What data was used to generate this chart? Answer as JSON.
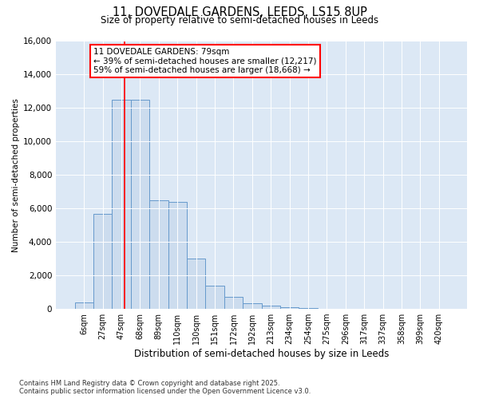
{
  "title_line1": "11, DOVEDALE GARDENS, LEEDS, LS15 8UP",
  "title_line2": "Size of property relative to semi-detached houses in Leeds",
  "xlabel": "Distribution of semi-detached houses by size in Leeds",
  "ylabel": "Number of semi-detached properties",
  "bin_labels": [
    "6sqm",
    "27sqm",
    "47sqm",
    "68sqm",
    "89sqm",
    "110sqm",
    "130sqm",
    "151sqm",
    "172sqm",
    "192sqm",
    "213sqm",
    "234sqm",
    "254sqm",
    "275sqm",
    "296sqm",
    "317sqm",
    "337sqm",
    "358sqm",
    "399sqm",
    "420sqm"
  ],
  "bin_values": [
    400,
    5700,
    12500,
    12500,
    6500,
    6400,
    3000,
    1400,
    700,
    350,
    200,
    100,
    50,
    0,
    0,
    0,
    0,
    0,
    0,
    0
  ],
  "bar_color": "#ccdcee",
  "bar_edge_color": "#6699cc",
  "marker_line_color": "red",
  "marker_bar_index": 2,
  "annotation_title": "11 DOVEDALE GARDENS: 79sqm",
  "annotation_line1": "← 39% of semi-detached houses are smaller (12,217)",
  "annotation_line2": "59% of semi-detached houses are larger (18,668) →",
  "ylim": [
    0,
    16000
  ],
  "yticks": [
    0,
    2000,
    4000,
    6000,
    8000,
    10000,
    12000,
    14000,
    16000
  ],
  "background_color": "#dce8f5",
  "footer_line1": "Contains HM Land Registry data © Crown copyright and database right 2025.",
  "footer_line2": "Contains public sector information licensed under the Open Government Licence v3.0."
}
